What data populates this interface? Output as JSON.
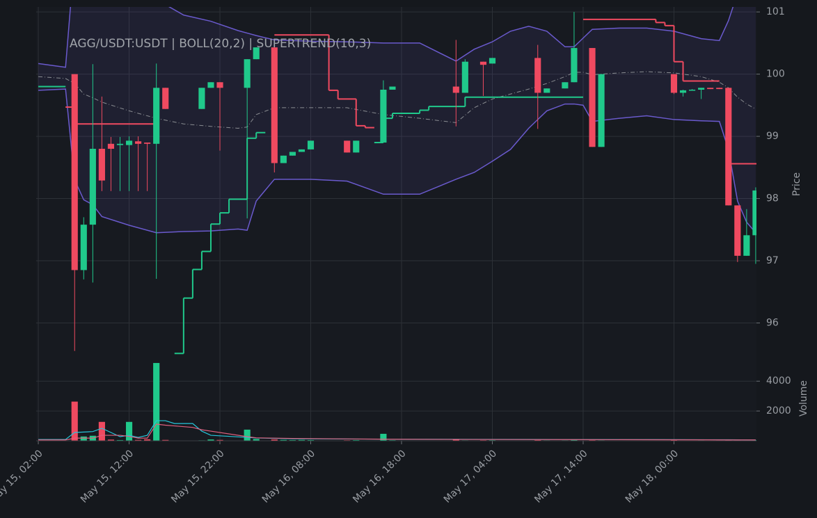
{
  "chart_data": {
    "type": "candlestick",
    "title": "AGG/USDT:USDT | BOLL(20,2) | SUPERTREND(10,3)",
    "ylabel": "Price",
    "up_color": "#20c98b",
    "down_color": "#f04a60",
    "grid": true,
    "xlim": [
      "May 15, 01:46",
      "May 18, 09:05"
    ],
    "xticks": [
      "May 15, 02:00",
      "May 15, 12:00",
      "May 15, 22:00",
      "May 16, 08:00",
      "May 16, 18:00",
      "May 17, 04:00",
      "May 17, 14:00",
      "May 18, 00:00"
    ],
    "ylim": [
      95.1,
      101.08
    ],
    "yticks": [
      96,
      97,
      98,
      99,
      100,
      101
    ],
    "x": [
      "May 15, 06:00",
      "May 15, 07:00",
      "May 15, 08:00",
      "May 15, 09:00",
      "May 15, 10:00",
      "May 15, 11:00",
      "May 15, 12:00",
      "May 15, 13:00",
      "May 15, 14:00",
      "May 15, 15:00",
      "May 15, 16:00",
      "May 15, 20:00",
      "May 15, 21:00",
      "May 15, 22:00",
      "May 16, 01:00",
      "May 16, 02:00",
      "May 16, 04:00",
      "May 16, 05:00",
      "May 16, 06:00",
      "May 16, 07:00",
      "May 16, 08:00",
      "May 16, 12:00",
      "May 16, 13:00",
      "May 16, 16:00",
      "May 16, 17:00",
      "May 17, 00:00",
      "May 17, 01:00",
      "May 17, 03:00",
      "May 17, 04:00",
      "May 17, 09:00",
      "May 17, 10:00",
      "May 17, 12:00",
      "May 17, 13:00",
      "May 17, 15:00",
      "May 17, 16:00",
      "May 18, 00:00",
      "May 18, 01:00",
      "May 18, 02:00",
      "May 18, 03:00",
      "May 18, 04:00",
      "May 18, 05:00",
      "May 18, 06:00",
      "May 18, 07:00",
      "May 18, 08:00",
      "May 18, 09:00"
    ],
    "open": [
      100.0,
      96.85,
      97.58,
      98.8,
      98.88,
      98.86,
      98.86,
      98.92,
      98.9,
      98.88,
      99.78,
      99.44,
      99.78,
      99.87,
      99.78,
      100.24,
      100.43,
      98.57,
      98.69,
      98.75,
      98.79,
      98.93,
      98.74,
      98.9,
      99.75,
      99.8,
      99.7,
      100.2,
      100.17,
      100.26,
      99.7,
      99.77,
      99.87,
      100.42,
      98.83,
      100.0,
      99.7,
      99.74,
      99.75,
      99.78,
      99.78,
      99.78,
      97.89,
      97.08,
      97.41
    ],
    "high": [
      100.0,
      97.7,
      100.16,
      99.64,
      98.99,
      98.99,
      99.0,
      99.0,
      98.9,
      100.17,
      99.78,
      99.78,
      99.87,
      99.87,
      100.24,
      100.43,
      100.43,
      98.69,
      98.75,
      98.79,
      98.93,
      98.93,
      98.93,
      99.9,
      99.8,
      100.55,
      100.24,
      100.2,
      100.26,
      100.47,
      99.77,
      99.87,
      101.0,
      100.42,
      100.0,
      100.0,
      99.75,
      99.76,
      99.78,
      99.78,
      99.78,
      99.78,
      97.89,
      97.83,
      98.18
    ],
    "low": [
      95.55,
      96.7,
      96.65,
      98.12,
      98.12,
      98.12,
      98.12,
      98.12,
      98.12,
      96.71,
      99.44,
      99.44,
      99.78,
      98.77,
      97.68,
      100.24,
      98.42,
      98.57,
      98.69,
      98.75,
      98.79,
      98.74,
      98.74,
      98.9,
      99.75,
      99.16,
      99.7,
      99.65,
      100.17,
      99.12,
      99.7,
      99.77,
      99.87,
      98.83,
      98.83,
      99.68,
      99.64,
      99.74,
      99.6,
      99.76,
      99.76,
      97.89,
      96.98,
      97.08,
      96.95
    ],
    "close": [
      96.85,
      97.58,
      98.8,
      98.29,
      98.8,
      98.88,
      98.93,
      98.88,
      98.88,
      99.78,
      99.44,
      99.78,
      99.87,
      99.78,
      100.24,
      100.43,
      98.57,
      98.69,
      98.75,
      98.79,
      98.93,
      98.74,
      98.93,
      99.75,
      99.8,
      99.7,
      100.2,
      100.15,
      100.26,
      99.7,
      99.77,
      99.87,
      100.42,
      98.83,
      100.0,
      99.7,
      99.74,
      99.75,
      99.78,
      99.76,
      99.76,
      97.89,
      97.08,
      97.41,
      98.13
    ],
    "bollinger": {
      "color": "#6a5acd",
      "middle_color": "#8a8d92",
      "fill": "#6a5acd",
      "x": [
        "May 15, 02:00",
        "May 15, 05:00",
        "May 15, 06:00",
        "May 15, 07:00",
        "May 15, 08:00",
        "May 15, 09:00",
        "May 15, 12:00",
        "May 15, 15:00",
        "May 15, 18:00",
        "May 15, 21:00",
        "May 16, 00:00",
        "May 16, 01:00",
        "May 16, 02:00",
        "May 16, 04:00",
        "May 16, 08:00",
        "May 16, 12:00",
        "May 16, 16:00",
        "May 16, 20:00",
        "May 17, 00:00",
        "May 17, 02:00",
        "May 17, 04:00",
        "May 17, 06:00",
        "May 17, 08:00",
        "May 17, 10:00",
        "May 17, 12:00",
        "May 17, 13:00",
        "May 17, 14:00",
        "May 17, 15:00",
        "May 17, 18:00",
        "May 17, 21:00",
        "May 18, 00:00",
        "May 18, 03:00",
        "May 18, 05:00",
        "May 18, 06:00",
        "May 18, 07:00",
        "May 18, 08:00",
        "May 18, 09:00"
      ],
      "upper": [
        100.17,
        100.11,
        101.9,
        102.4,
        102.6,
        102.5,
        102.0,
        101.2,
        100.95,
        100.85,
        100.7,
        100.66,
        100.62,
        100.55,
        100.53,
        100.52,
        100.5,
        100.5,
        100.21,
        100.4,
        100.52,
        100.69,
        100.77,
        100.69,
        100.44,
        100.44,
        100.58,
        100.72,
        100.74,
        100.74,
        100.69,
        100.57,
        100.54,
        100.86,
        101.3,
        101.8,
        102.2
      ],
      "middle": [
        99.96,
        99.93,
        99.85,
        99.68,
        99.62,
        99.55,
        99.41,
        99.29,
        99.2,
        99.16,
        99.13,
        99.15,
        99.35,
        99.46,
        99.46,
        99.46,
        99.35,
        99.29,
        99.22,
        99.46,
        99.6,
        99.68,
        99.76,
        99.85,
        99.96,
        100.03,
        100.03,
        99.99,
        100.02,
        100.04,
        100.02,
        99.96,
        99.87,
        99.78,
        99.63,
        99.52,
        99.44
      ],
      "lower": [
        99.74,
        99.76,
        98.3,
        97.98,
        97.9,
        97.71,
        97.57,
        97.45,
        97.47,
        97.48,
        97.51,
        97.49,
        97.96,
        98.31,
        98.31,
        98.28,
        98.07,
        98.07,
        98.31,
        98.42,
        98.6,
        98.79,
        99.13,
        99.41,
        99.52,
        99.52,
        99.5,
        99.24,
        99.29,
        99.33,
        99.27,
        99.25,
        99.24,
        98.79,
        97.96,
        97.62,
        97.45
      ]
    },
    "supertrend": {
      "x": [
        "May 15, 02:00",
        "May 15, 05:00",
        "May 15, 06:00",
        "May 15, 15:00",
        "May 15, 17:00",
        "May 15, 18:00",
        "May 15, 19:00",
        "May 15, 20:00",
        "May 15, 21:00",
        "May 15, 22:00",
        "May 15, 23:00",
        "May 16, 01:00",
        "May 16, 02:00",
        "May 16, 03:00",
        "May 16, 04:00",
        "May 16, 10:00",
        "May 16, 11:00",
        "May 16, 13:00",
        "May 16, 14:00",
        "May 16, 15:00",
        "May 16, 16:00",
        "May 16, 17:00",
        "May 16, 20:00",
        "May 16, 21:00",
        "May 17, 01:00",
        "May 17, 14:00",
        "May 17, 22:00",
        "May 17, 23:00",
        "May 18, 00:00",
        "May 18, 01:00",
        "May 18, 05:00",
        "May 18, 06:00"
      ],
      "up": {
        "color": "#20c98b",
        "values": [
          99.8,
          null,
          null,
          null,
          95.51,
          96.4,
          96.86,
          97.15,
          97.59,
          97.77,
          97.99,
          98.97,
          99.06,
          null,
          null,
          null,
          null,
          null,
          null,
          98.9,
          99.29,
          99.37,
          99.42,
          99.48,
          99.63,
          null,
          null,
          null,
          null,
          null,
          null,
          null
        ]
      },
      "down": {
        "color": "#f04a60",
        "values": [
          null,
          99.47,
          99.2,
          null,
          null,
          null,
          null,
          null,
          null,
          null,
          null,
          null,
          null,
          null,
          100.63,
          99.74,
          99.6,
          99.17,
          99.14,
          null,
          null,
          null,
          null,
          null,
          null,
          100.88,
          100.83,
          100.78,
          100.2,
          99.89,
          null,
          98.56
        ]
      }
    },
    "volume": {
      "ylabel": "Volume",
      "ylim": [
        0,
        4150
      ],
      "yticks": [
        2000,
        4000
      ],
      "values": [
        2630,
        290,
        340,
        1270,
        80,
        50,
        1270,
        60,
        100,
        5220,
        60,
        30,
        90,
        60,
        750,
        120,
        90,
        60,
        50,
        60,
        50,
        40,
        50,
        470,
        40,
        70,
        30,
        40,
        40,
        50,
        30,
        30,
        60,
        40,
        30,
        50,
        20,
        20,
        30,
        20,
        30,
        90,
        40,
        30,
        50
      ],
      "lines": {
        "x": [
          "May 15, 02:00",
          "May 15, 05:00",
          "May 15, 06:00",
          "May 15, 08:00",
          "May 15, 09:00",
          "May 15, 11:00",
          "May 15, 12:00",
          "May 15, 13:00",
          "May 15, 14:00",
          "May 15, 15:00",
          "May 15, 16:00",
          "May 15, 17:00",
          "May 15, 19:00",
          "May 15, 20:00",
          "May 15, 21:00",
          "May 16, 01:00",
          "May 16, 02:00",
          "May 16, 06:00",
          "May 16, 16:00",
          "May 17, 02:00",
          "May 17, 12:00",
          "May 17, 22:00",
          "May 18, 06:00",
          "May 18, 09:00"
        ],
        "series": [
          {
            "color": "#26c6da",
            "values": [
              90,
              90,
              560,
              620,
              840,
              280,
              370,
              230,
              370,
              1350,
              1350,
              1160,
              1160,
              650,
              370,
              230,
              190,
              140,
              110,
              100,
              90,
              80,
              70,
              60
            ]
          },
          {
            "color": "#e0607e",
            "values": [
              60,
              60,
              180,
              180,
              370,
              370,
              300,
              180,
              180,
              1120,
              1050,
              1000,
              900,
              740,
              650,
              280,
              200,
              160,
              110,
              90,
              80,
              70,
              60,
              60
            ]
          }
        ]
      }
    }
  }
}
